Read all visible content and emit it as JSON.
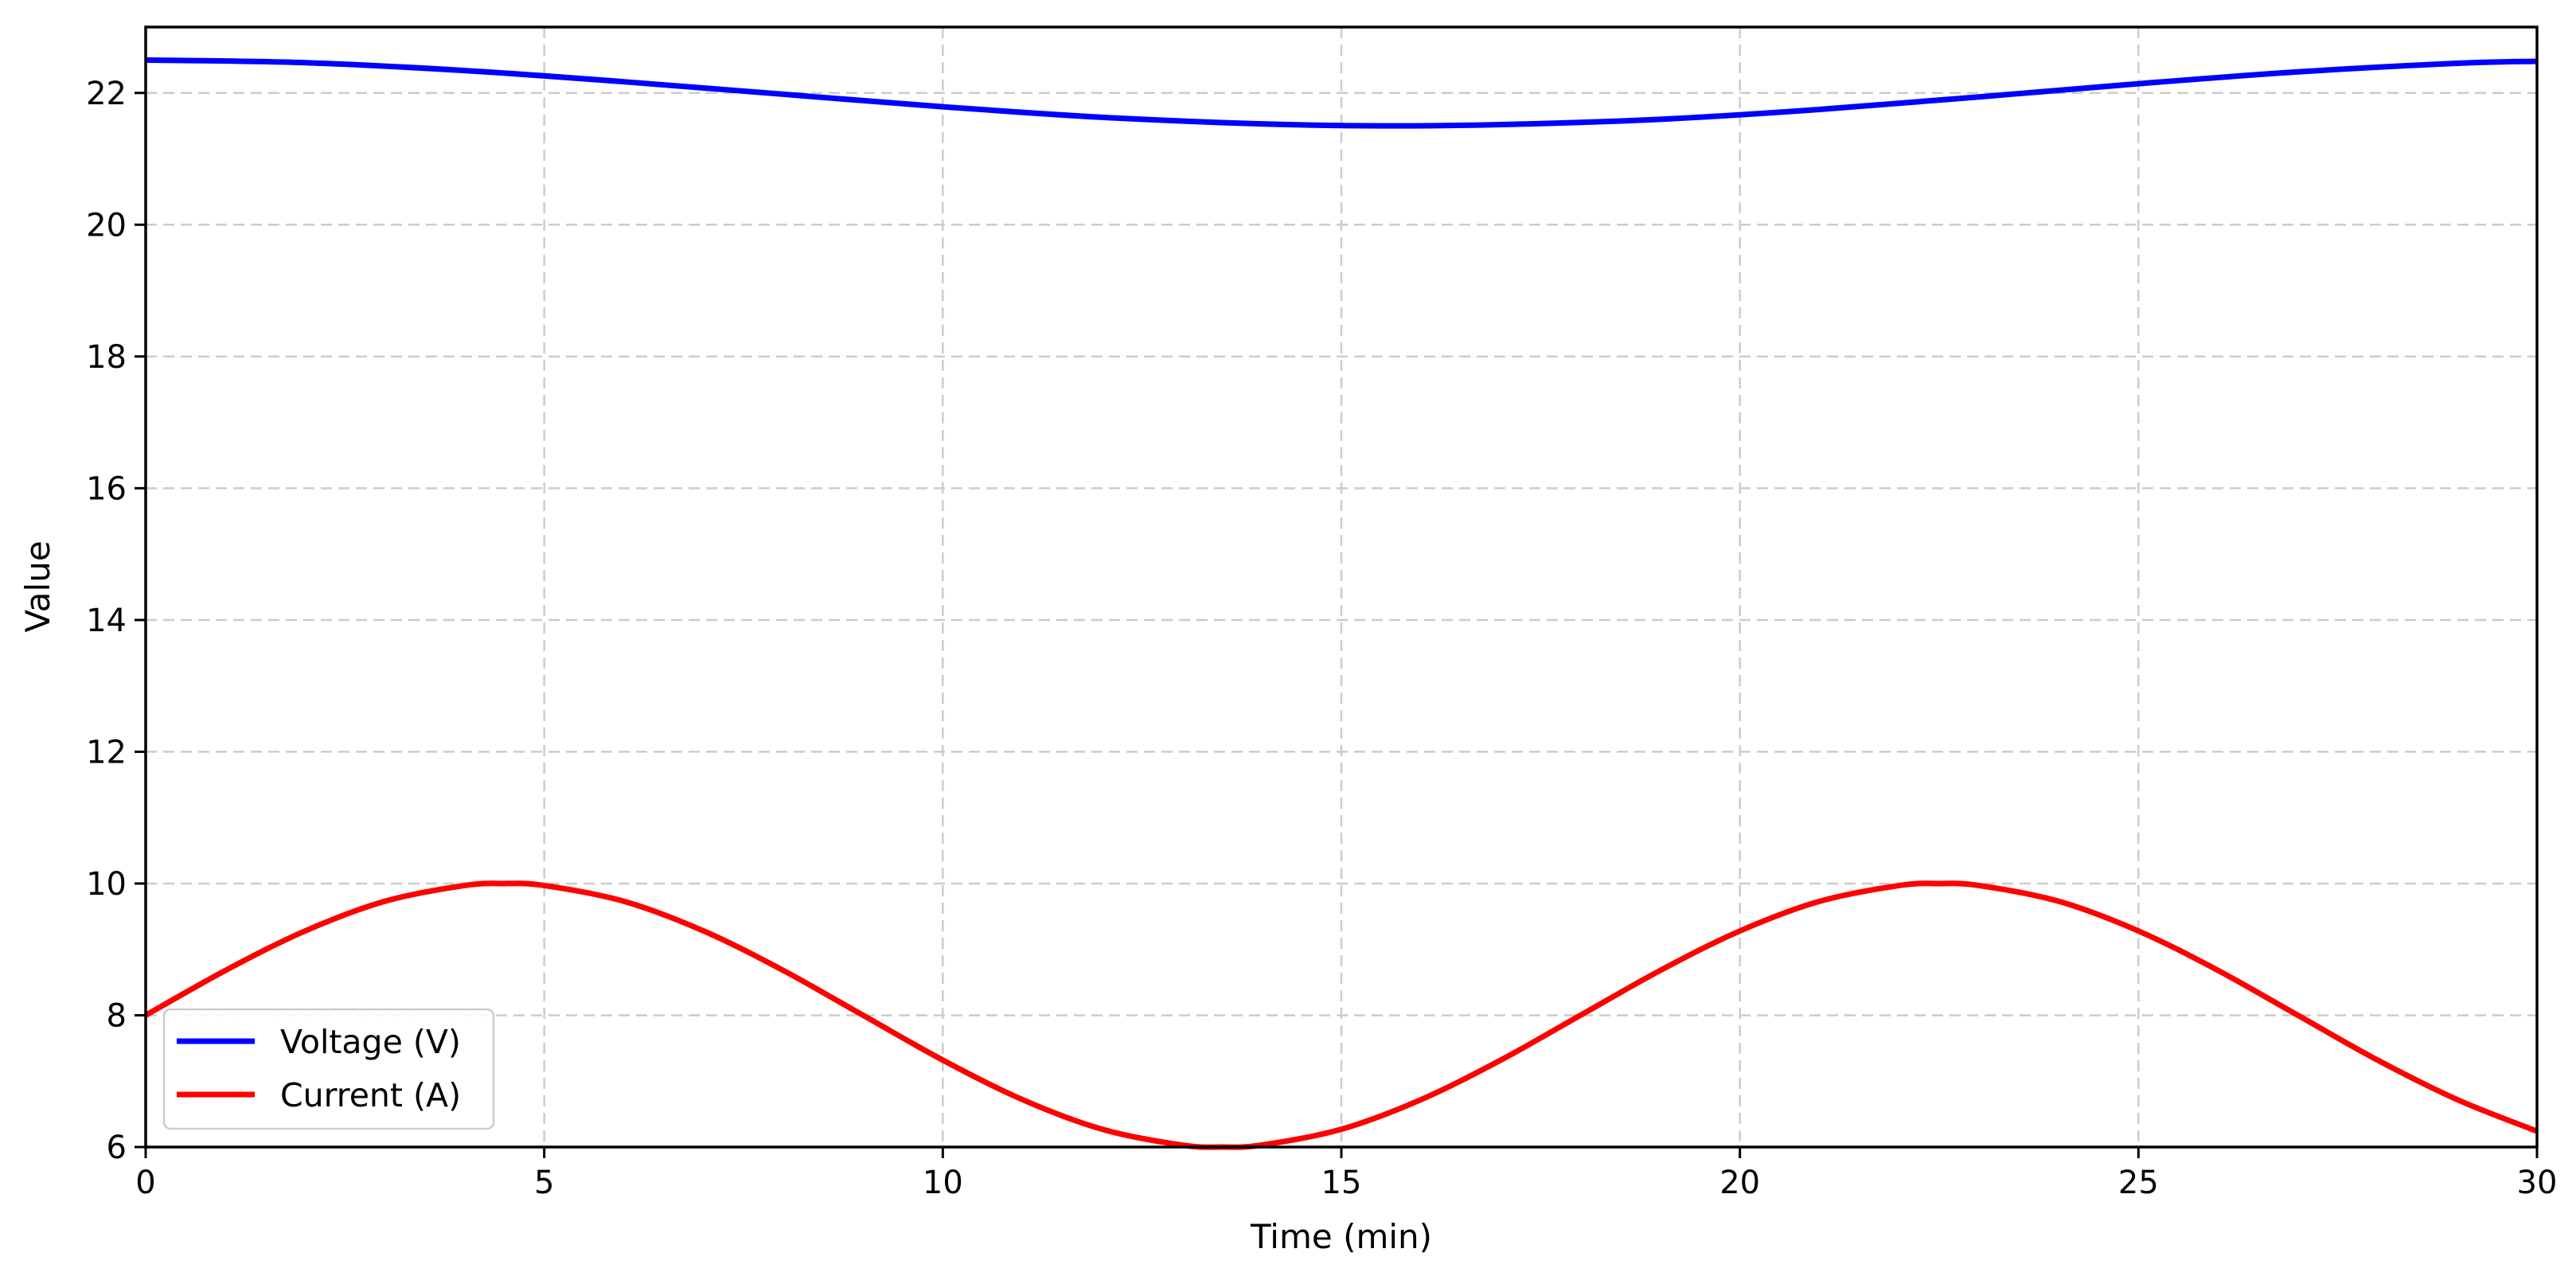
{
  "chart_data": {
    "type": "line",
    "title": "",
    "xlabel": "Time (min)",
    "ylabel": "Value",
    "xlim": [
      0,
      30
    ],
    "ylim": [
      6,
      23
    ],
    "xticks": [
      0,
      5,
      10,
      15,
      20,
      25,
      30
    ],
    "yticks": [
      6,
      8,
      10,
      12,
      14,
      16,
      18,
      20,
      22
    ],
    "grid": true,
    "legend_position": "lower-left",
    "series": [
      {
        "name": "Voltage (V)",
        "color": "#0000ff",
        "x": [
          0,
          2,
          4,
          6,
          8,
          10,
          12,
          14,
          15.5,
          17,
          19,
          21,
          23,
          25,
          27,
          29,
          30
        ],
        "y": [
          22.5,
          22.46,
          22.34,
          22.17,
          21.98,
          21.79,
          21.63,
          21.53,
          21.5,
          21.52,
          21.6,
          21.75,
          21.94,
          22.14,
          22.32,
          22.45,
          22.48
        ]
      },
      {
        "name": "Current (A)",
        "color": "#ff0000",
        "x": [
          0,
          1,
          2,
          3,
          4,
          4.5,
          5,
          6,
          7,
          8,
          9,
          10,
          11,
          12,
          13,
          13.5,
          14,
          15,
          16,
          17,
          18,
          19,
          20,
          21,
          22,
          22.5,
          23,
          24,
          25,
          26,
          27,
          28,
          29,
          30
        ],
        "y": [
          8.0,
          8.68,
          9.28,
          9.73,
          9.97,
          10.0,
          9.97,
          9.73,
          9.28,
          8.68,
          8.0,
          7.32,
          6.72,
          6.27,
          6.03,
          6.0,
          6.03,
          6.27,
          6.72,
          7.32,
          8.0,
          8.68,
          9.28,
          9.73,
          9.97,
          10.0,
          9.97,
          9.73,
          9.28,
          8.68,
          8.0,
          7.32,
          6.72,
          6.24
        ]
      }
    ]
  }
}
